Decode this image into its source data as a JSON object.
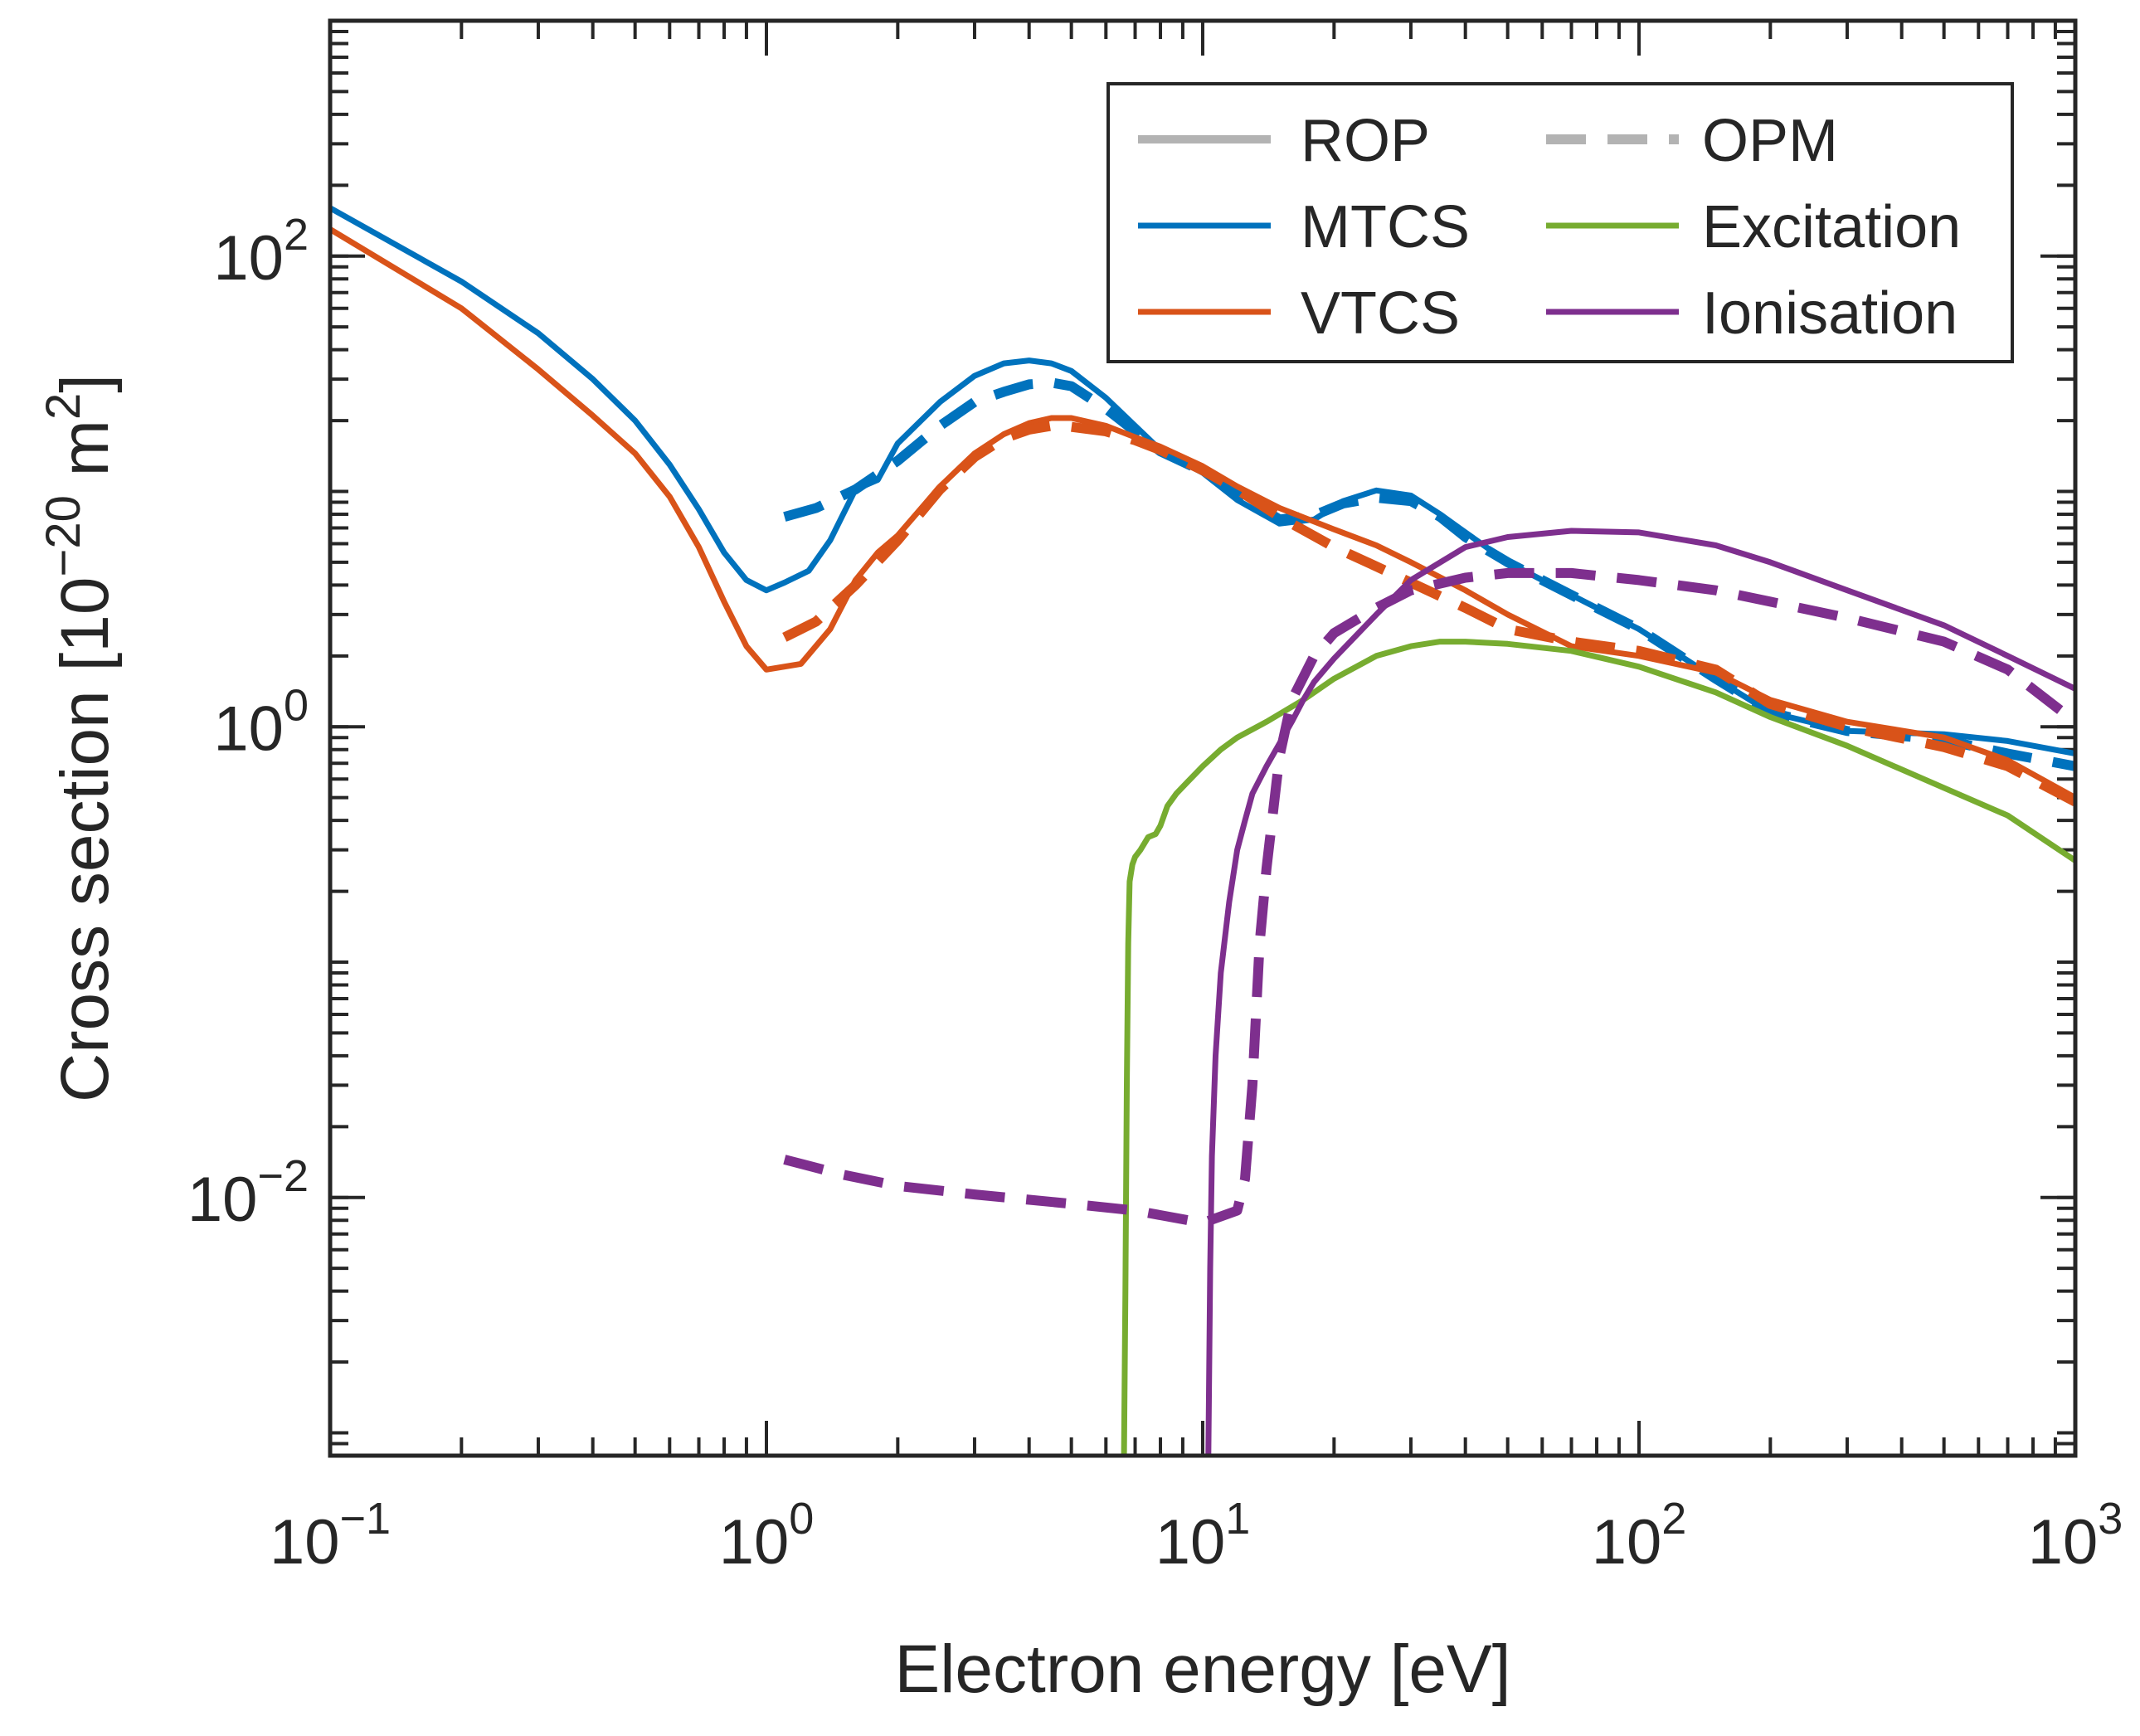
{
  "chart_data": {
    "type": "line",
    "xscale": "log",
    "yscale": "log",
    "xlim": [
      0.1,
      1000
    ],
    "ylim": [
      0.0008,
      1000
    ],
    "xlabel": "Electron energy [eV]",
    "ylabel": {
      "main": "Cross section [10",
      "exp": "−20",
      "unit": " m",
      "unit_exp": "2",
      "close": "]"
    },
    "x_ticks": [
      {
        "base": "10",
        "exp": "−1",
        "value": 0.1
      },
      {
        "base": "10",
        "exp": "0",
        "value": 1
      },
      {
        "base": "10",
        "exp": "1",
        "value": 10
      },
      {
        "base": "10",
        "exp": "2",
        "value": 100
      },
      {
        "base": "10",
        "exp": "3",
        "value": 1000
      }
    ],
    "y_ticks": [
      {
        "base": "10",
        "exp": "−2",
        "value": 0.01
      },
      {
        "base": "10",
        "exp": "0",
        "value": 1
      },
      {
        "base": "10",
        "exp": "2",
        "value": 100
      }
    ],
    "legend": {
      "position": "top-right",
      "entries": [
        {
          "label": "ROP",
          "color": "#b3b3b3",
          "style": "solid"
        },
        {
          "label": "OPM",
          "color": "#b3b3b3",
          "style": "dashed"
        },
        {
          "label": "MTCS",
          "color": "#0072bd",
          "style": "solid"
        },
        {
          "label": "Excitation",
          "color": "#77ac30",
          "style": "solid"
        },
        {
          "label": "VTCS",
          "color": "#d95319",
          "style": "solid"
        },
        {
          "label": "Ionisation",
          "color": "#7e2f8e",
          "style": "solid"
        }
      ]
    },
    "series": [
      {
        "name": "MTCS (ROP)",
        "color": "#0072bd",
        "style": "solid",
        "x": [
          0.1,
          0.2,
          0.3,
          0.4,
          0.5,
          0.6,
          0.7,
          0.8,
          0.9,
          1.0,
          1.1,
          1.25,
          1.4,
          1.6,
          1.8,
          2.0,
          2.5,
          3.0,
          3.5,
          4.0,
          4.5,
          5.0,
          6.0,
          7.0,
          8.0,
          10.0,
          12.0,
          15.0,
          18.0,
          21.0,
          25.0,
          30.0,
          35.0,
          40.0,
          50.0,
          60.0,
          80.0,
          100.0,
          150.0,
          200.0,
          300.0,
          500.0,
          700.0,
          1000.0
        ],
        "y": [
          160,
          78,
          47,
          30,
          20,
          13,
          8.4,
          5.5,
          4.2,
          3.8,
          4.1,
          4.6,
          6.2,
          10.2,
          11.2,
          16,
          24,
          31,
          35,
          36,
          35,
          32.5,
          25,
          19,
          15,
          12,
          9.2,
          7.3,
          7.6,
          9.1,
          10.1,
          9.6,
          8.0,
          6.7,
          5.0,
          4.2,
          3.2,
          2.6,
          1.6,
          1.15,
          0.96,
          0.93,
          0.87,
          0.77
        ]
      },
      {
        "name": "MTCS (OPM)",
        "color": "#0072bd",
        "style": "dashed",
        "x": [
          1.1,
          1.3,
          1.6,
          2.0,
          2.5,
          3.0,
          3.5,
          4.0,
          4.5,
          5.0,
          6.0,
          7.0,
          8.0,
          10.0,
          12.0,
          15.0,
          18.0,
          21.0,
          25.0,
          30.0,
          35.0,
          40.0,
          50.0,
          60.0,
          80.0,
          100.0,
          150.0,
          200.0,
          300.0,
          500.0,
          700.0,
          1000.0
        ],
        "y": [
          7.8,
          8.5,
          10.2,
          13.5,
          19,
          24,
          26.5,
          28.5,
          29,
          28,
          22.5,
          18,
          14.8,
          12.2,
          9.8,
          7.6,
          7.9,
          8.9,
          9.4,
          9.1,
          7.8,
          6.4,
          5.0,
          4.2,
          3.2,
          2.6,
          1.6,
          1.15,
          0.96,
          0.88,
          0.77,
          0.68
        ]
      },
      {
        "name": "VTCS (ROP)",
        "color": "#d95319",
        "style": "solid",
        "x": [
          0.1,
          0.2,
          0.3,
          0.4,
          0.5,
          0.6,
          0.7,
          0.8,
          0.9,
          1.0,
          1.2,
          1.4,
          1.6,
          1.8,
          2.0,
          2.5,
          3.0,
          3.5,
          4.0,
          4.5,
          5.0,
          6.0,
          7.0,
          8.0,
          10.0,
          12.0,
          15.0,
          20.0,
          25.0,
          30.0,
          40.0,
          50.0,
          70.0,
          100.0,
          150.0,
          200.0,
          300.0,
          500.0,
          700.0,
          1000.0
        ],
        "y": [
          130,
          60,
          33,
          21,
          14.5,
          9.5,
          5.8,
          3.4,
          2.2,
          1.75,
          1.85,
          2.6,
          4.2,
          5.5,
          6.5,
          10.5,
          14.5,
          17.5,
          19.5,
          20.5,
          20.5,
          19,
          17,
          15.5,
          12.8,
          10.5,
          8.5,
          6.9,
          5.9,
          5.0,
          3.8,
          3.0,
          2.2,
          2.0,
          1.7,
          1.3,
          1.05,
          0.9,
          0.72,
          0.5
        ]
      },
      {
        "name": "VTCS (OPM)",
        "color": "#d95319",
        "style": "dashed",
        "x": [
          1.1,
          1.3,
          1.6,
          2.0,
          2.5,
          3.0,
          3.5,
          4.0,
          4.5,
          5.0,
          6.0,
          7.0,
          8.0,
          10.0,
          12.0,
          15.0,
          20.0,
          25.0,
          30.0,
          40.0,
          50.0,
          70.0,
          100.0,
          150.0,
          200.0,
          300.0,
          500.0,
          700.0,
          1000.0
        ],
        "y": [
          2.4,
          2.8,
          4.0,
          6.2,
          10.2,
          14,
          16.8,
          18.3,
          19,
          18.8,
          18,
          16.5,
          15,
          12.3,
          10.2,
          7.8,
          5.8,
          4.8,
          4.1,
          3.2,
          2.6,
          2.3,
          2.1,
          1.75,
          1.25,
          1.0,
          0.82,
          0.68,
          0.48
        ]
      },
      {
        "name": "Excitation (ROP)",
        "color": "#77ac30",
        "style": "solid",
        "x": [
          6.6,
          6.65,
          6.7,
          6.75,
          6.8,
          6.9,
          7.0,
          7.2,
          7.5,
          7.8,
          8.0,
          8.3,
          8.7,
          9.2,
          10.0,
          11.0,
          12.0,
          14.0,
          17.0,
          20.0,
          25.0,
          30.0,
          35.0,
          40.0,
          50.0,
          70.0,
          100.0,
          150.0,
          200.0,
          300.0,
          500.0,
          700.0,
          1000.0
        ],
        "y": [
          0.0008,
          0.004,
          0.03,
          0.12,
          0.22,
          0.26,
          0.28,
          0.3,
          0.34,
          0.35,
          0.38,
          0.46,
          0.52,
          0.58,
          0.68,
          0.8,
          0.9,
          1.05,
          1.3,
          1.6,
          2.0,
          2.2,
          2.3,
          2.3,
          2.25,
          2.1,
          1.8,
          1.4,
          1.1,
          0.83,
          0.55,
          0.42,
          0.27
        ]
      },
      {
        "name": "Ionisation (ROP)",
        "color": "#7e2f8e",
        "style": "solid",
        "x": [
          10.3,
          10.4,
          10.5,
          10.7,
          11.0,
          11.5,
          12.0,
          12.5,
          13.0,
          14.0,
          15.0,
          16.0,
          17.0,
          18.0,
          20.0,
          25.0,
          30.0,
          40.0,
          50.0,
          70.0,
          100.0,
          150.0,
          200.0,
          300.0,
          500.0,
          700.0,
          1000.0
        ],
        "y": [
          0.0008,
          0.005,
          0.015,
          0.04,
          0.09,
          0.18,
          0.3,
          0.4,
          0.52,
          0.68,
          0.85,
          1.05,
          1.3,
          1.55,
          1.95,
          3.0,
          4.2,
          5.8,
          6.4,
          6.8,
          6.7,
          5.9,
          5.0,
          3.8,
          2.7,
          2.0,
          1.45
        ]
      },
      {
        "name": "Ionisation (OPM)",
        "color": "#7e2f8e",
        "style": "dashed",
        "x": [
          1.1,
          1.5,
          2.0,
          3.0,
          5.0,
          7.0,
          10.0,
          12.0,
          12.5,
          13.0,
          13.5,
          14.0,
          15.0,
          16.0,
          18.0,
          20.0,
          25.0,
          30.0,
          40.0,
          50.0,
          70.0,
          100.0,
          150.0,
          200.0,
          300.0,
          500.0,
          700.0,
          1000.0
        ],
        "y": [
          0.0145,
          0.0125,
          0.0112,
          0.0103,
          0.0094,
          0.0088,
          0.0078,
          0.0088,
          0.012,
          0.03,
          0.12,
          0.25,
          0.75,
          1.3,
          2.0,
          2.5,
          3.2,
          3.8,
          4.3,
          4.5,
          4.5,
          4.2,
          3.8,
          3.4,
          2.9,
          2.3,
          1.75,
          1.05
        ]
      }
    ]
  }
}
